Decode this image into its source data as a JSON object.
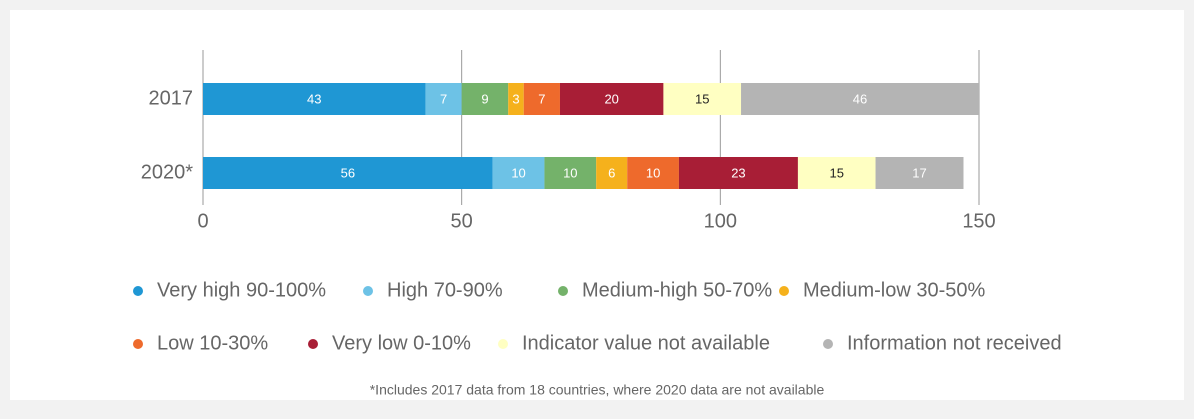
{
  "chart_data": {
    "type": "stacked_barh",
    "categories": [
      "2017",
      "2020*"
    ],
    "series": [
      {
        "name": "Very high 90-100%",
        "color": "#1f97d4",
        "values": [
          43,
          56
        ]
      },
      {
        "name": "High 70-90%",
        "color": "#6dc2e6",
        "values": [
          7,
          10
        ]
      },
      {
        "name": "Medium-high 50-70%",
        "color": "#74b26a",
        "values": [
          9,
          10
        ]
      },
      {
        "name": "Medium-low 30-50%",
        "color": "#f5b11c",
        "values": [
          3,
          6
        ]
      },
      {
        "name": "Low 10-30%",
        "color": "#ee6a2c",
        "values": [
          7,
          10
        ]
      },
      {
        "name": "Very low 0-10%",
        "color": "#a81e36",
        "values": [
          20,
          23
        ]
      },
      {
        "name": "Indicator value not available",
        "color": "#ffffc2",
        "values": [
          15,
          15
        ]
      },
      {
        "name": "Information not received",
        "color": "#b4b4b4",
        "values": [
          46,
          17
        ]
      }
    ],
    "xlim": [
      0,
      150
    ],
    "xticks": [
      0,
      50,
      100,
      150
    ],
    "grid": true,
    "footnote": "*Includes 2017 data from 18 countries, where 2020 data are not available"
  }
}
